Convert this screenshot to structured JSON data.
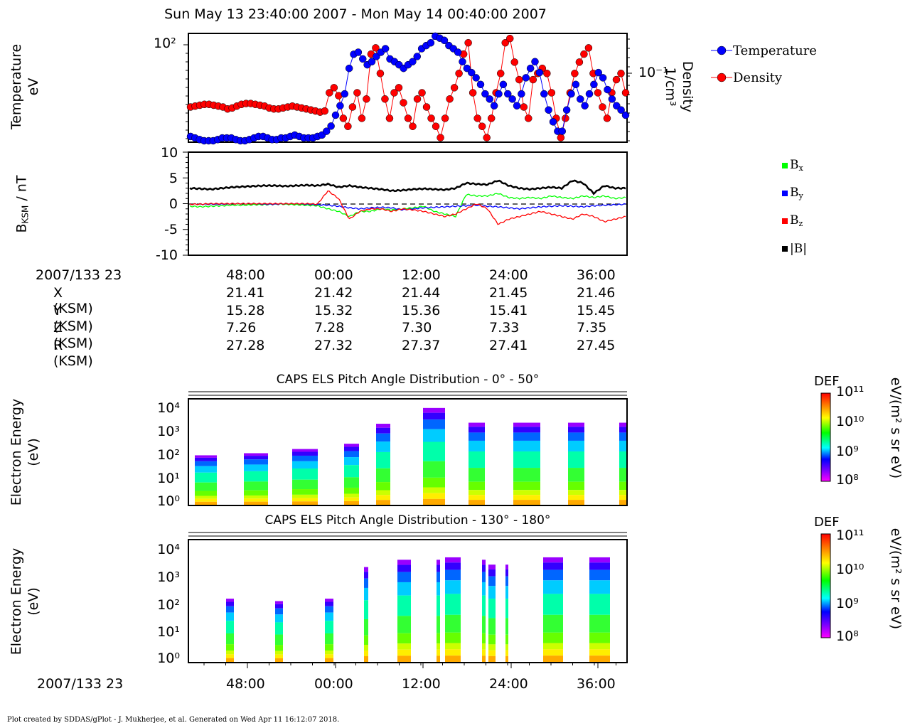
{
  "header": {
    "time_range": "Sun May 13 23:40:00 2007 - Mon May 14 00:40:00 2007"
  },
  "panel1": {
    "ylabel_left": [
      "Temperature",
      "eV"
    ],
    "ylabel_right": [
      "Density",
      "1/cm³"
    ],
    "left_tick": "10²",
    "right_tick": "10⁻¹",
    "legend": [
      {
        "name": "Temperature",
        "color": "#0000ff"
      },
      {
        "name": "Density",
        "color": "#ff0000"
      }
    ]
  },
  "panel2": {
    "ylabel": "B_KSM / nT",
    "ylabel_main": "B",
    "ylabel_sub": "KSM",
    "ylabel_rest": " / nT",
    "yticks": [
      "10",
      "5",
      "0",
      "-5",
      "-10"
    ],
    "legend": [
      {
        "name": "Bx",
        "main": "B",
        "sub": "x",
        "color": "#00ff00"
      },
      {
        "name": "By",
        "main": "B",
        "sub": "y",
        "color": "#0000ff"
      },
      {
        "name": "Bz",
        "main": "B",
        "sub": "z",
        "color": "#ff0000"
      },
      {
        "name": "|B|",
        "main": "|B|",
        "sub": "",
        "color": "#000000"
      }
    ]
  },
  "ephemeris": {
    "start_label": "2007/133 23",
    "times": [
      "48:00",
      "00:00",
      "12:00",
      "24:00",
      "36:00"
    ],
    "rows": [
      {
        "label": "X (KSM)",
        "values": [
          "21.41",
          "21.42",
          "21.44",
          "21.45",
          "21.46"
        ]
      },
      {
        "label": "Y (KSM)",
        "values": [
          "15.28",
          "15.32",
          "15.36",
          "15.41",
          "15.45"
        ]
      },
      {
        "label": "Z (KSM)",
        "values": [
          "7.26",
          "7.28",
          "7.30",
          "7.33",
          "7.35"
        ]
      },
      {
        "label": "R (KSM)",
        "values": [
          "27.28",
          "27.32",
          "27.37",
          "27.41",
          "27.45"
        ]
      }
    ]
  },
  "spectrogram1": {
    "title": "CAPS ELS Pitch Angle Distribution - 0° - 50°",
    "ylabel": [
      "Electron Energy",
      "(eV)"
    ],
    "yticks": [
      "10⁴",
      "10³",
      "10²",
      "10¹",
      "10⁰"
    ]
  },
  "spectrogram2": {
    "title": "CAPS ELS Pitch Angle Distribution - 130° - 180°",
    "ylabel": [
      "Electron Energy",
      "(eV)"
    ],
    "yticks": [
      "10⁴",
      "10³",
      "10²",
      "10¹",
      "10⁰"
    ]
  },
  "colorbar": {
    "label": "DEF",
    "units": "eV/(m² s sr eV)",
    "ticks": [
      "10¹¹",
      "10¹⁰",
      "10⁹",
      "10⁸"
    ]
  },
  "bottom_axis": {
    "start_label": "2007/133 23",
    "times": [
      "48:00",
      "00:00",
      "12:00",
      "24:00",
      "36:00"
    ]
  },
  "footer": "Plot created by SDDAS/gPlot - J. Mukherjee, et al.  Generated on Wed Apr 11 16:12:07 2018.",
  "chart_data": [
    {
      "type": "scatter",
      "title": "Sun May 13 23:40:00 2007 - Mon May 14 00:40:00 2007",
      "ylabel": "Temperature eV",
      "y2label": "Density 1/cm³",
      "legend_position": "right",
      "series": [
        {
          "name": "Temperature",
          "color": "#0000ff",
          "axis": "left-log",
          "y": [
            1.6,
            1.5,
            1.4,
            1.3,
            1.3,
            1.3,
            1.4,
            1.5,
            1.5,
            1.5,
            1.4,
            1.3,
            1.3,
            1.4,
            1.5,
            1.6,
            1.6,
            1.5,
            1.4,
            1.4,
            1.5,
            1.5,
            1.6,
            1.7,
            1.6,
            1.5,
            1.5,
            1.5,
            1.6,
            1.7,
            2.0,
            2.5,
            4.0,
            6.0,
            10,
            30,
            55,
            60,
            45,
            35,
            40,
            50,
            60,
            70,
            45,
            40,
            35,
            30,
            35,
            40,
            50,
            70,
            80,
            90,
            120,
            110,
            100,
            80,
            70,
            60,
            40,
            30,
            25,
            20,
            15,
            10,
            8,
            6,
            10,
            15,
            10,
            8,
            6,
            10,
            20,
            30,
            40,
            25,
            10,
            5,
            3,
            2,
            2,
            5,
            10,
            15,
            8,
            6,
            10,
            15,
            25,
            20,
            12,
            8,
            6,
            5,
            4
          ]
        },
        {
          "name": "Density",
          "color": "#ff0000",
          "axis": "right-log",
          "y": [
            0.03,
            0.031,
            0.032,
            0.033,
            0.033,
            0.032,
            0.031,
            0.03,
            0.028,
            0.029,
            0.031,
            0.033,
            0.034,
            0.034,
            0.033,
            0.032,
            0.031,
            0.029,
            0.028,
            0.028,
            0.029,
            0.03,
            0.031,
            0.03,
            0.029,
            0.028,
            0.027,
            0.026,
            0.025,
            0.026,
            0.05,
            0.06,
            0.045,
            0.02,
            0.015,
            0.03,
            0.05,
            0.02,
            0.04,
            0.2,
            0.25,
            0.1,
            0.04,
            0.02,
            0.05,
            0.06,
            0.035,
            0.02,
            0.015,
            0.04,
            0.05,
            0.03,
            0.02,
            0.015,
            0.01,
            0.02,
            0.04,
            0.06,
            0.1,
            0.2,
            0.3,
            0.05,
            0.02,
            0.015,
            0.01,
            0.02,
            0.05,
            0.1,
            0.3,
            0.35,
            0.15,
            0.08,
            0.03,
            0.02,
            0.08,
            0.1,
            0.12,
            0.1,
            0.05,
            0.02,
            0.01,
            0.02,
            0.05,
            0.1,
            0.15,
            0.2,
            0.25,
            0.1,
            0.05,
            0.03,
            0.02,
            0.05,
            0.08,
            0.1,
            0.05
          ]
        }
      ]
    },
    {
      "type": "line",
      "ylabel": "B_KSM / nT",
      "ylim": [
        -10,
        10
      ],
      "xticks": [
        "48:00",
        "00:00",
        "12:00",
        "24:00",
        "36:00"
      ],
      "legend_position": "right",
      "series": [
        {
          "name": "Bx",
          "color": "#00ff00",
          "y": [
            -0.5,
            -0.6,
            -0.5,
            -0.4,
            -0.3,
            -0.3,
            -0.2,
            -0.2,
            -0.1,
            -0.1,
            -0.2,
            -0.3,
            -0.4,
            -1.0,
            -1.5,
            -2.5,
            -1.5,
            -1.5,
            -1.0,
            -1.2,
            -1.0,
            -0.8,
            -0.5,
            -1.5,
            -2.0,
            -2.5,
            1.8,
            1.5,
            1.5,
            2.0,
            1.2,
            1.0,
            1.2,
            1.0,
            1.5,
            1.2,
            1.0,
            1.5,
            1.2,
            1.5,
            1.0,
            1.2
          ]
        },
        {
          "name": "By",
          "color": "#0000ff",
          "y": [
            -0.1,
            -0.1,
            -0.1,
            -0.1,
            0,
            0,
            0,
            -0.1,
            -0.1,
            0,
            0,
            -0.1,
            -0.2,
            -0.3,
            -0.5,
            -0.8,
            -1.0,
            -0.8,
            -0.7,
            -0.8,
            -1.2,
            -1.0,
            -0.8,
            -0.7,
            -0.6,
            -0.5,
            -0.4,
            -0.3,
            -0.5,
            -0.6,
            -0.8,
            -1.0,
            -0.8,
            -0.6,
            -0.5,
            -0.4,
            -0.5,
            -0.6,
            -0.4,
            -0.3,
            -0.2,
            -0.1
          ]
        },
        {
          "name": "Bz",
          "color": "#ff0000",
          "y": [
            -0.1,
            -0.1,
            0,
            0,
            0,
            0,
            0,
            0,
            0,
            0,
            0,
            0,
            -0.1,
            2.5,
            1.0,
            -3.0,
            -1.5,
            -1.0,
            -1.0,
            -1.5,
            -1.0,
            -1.2,
            -1.5,
            -2.0,
            -2.5,
            -2.0,
            -1.0,
            0,
            -1.0,
            -4.0,
            -3.0,
            -2.5,
            -2.0,
            -1.5,
            -2.0,
            -2.5,
            -3.0,
            -2.0,
            -2.5,
            -3.5,
            -3.0,
            -2.5
          ]
        },
        {
          "name": "|B|",
          "color": "#000000",
          "y": [
            3.0,
            2.9,
            2.8,
            3.0,
            3.2,
            3.3,
            3.4,
            3.5,
            3.5,
            3.4,
            3.5,
            3.6,
            3.5,
            3.8,
            3.2,
            3.5,
            3.2,
            3.0,
            2.8,
            2.5,
            2.6,
            2.8,
            2.9,
            2.8,
            2.7,
            3.0,
            4.0,
            3.8,
            3.7,
            4.5,
            3.5,
            3.0,
            2.8,
            3.0,
            3.2,
            3.0,
            4.5,
            4.0,
            2.0,
            3.5,
            3.0,
            3.0
          ]
        }
      ]
    },
    {
      "type": "heatmap",
      "title": "CAPS ELS Pitch Angle Distribution - 0° - 50°",
      "ylabel": "Electron Energy (eV)",
      "y_scale": "log",
      "ylim": [
        1,
        20000
      ],
      "colorbar": {
        "label": "DEF",
        "units": "eV/(m² s sr eV)",
        "range": [
          100000000.0,
          100000000000.0
        ],
        "scale": "log"
      }
    },
    {
      "type": "heatmap",
      "title": "CAPS ELS Pitch Angle Distribution - 130° - 180°",
      "ylabel": "Electron Energy (eV)",
      "y_scale": "log",
      "ylim": [
        1,
        20000
      ],
      "colorbar": {
        "label": "DEF",
        "units": "eV/(m² s sr eV)",
        "range": [
          100000000.0,
          100000000000.0
        ],
        "scale": "log"
      }
    }
  ]
}
